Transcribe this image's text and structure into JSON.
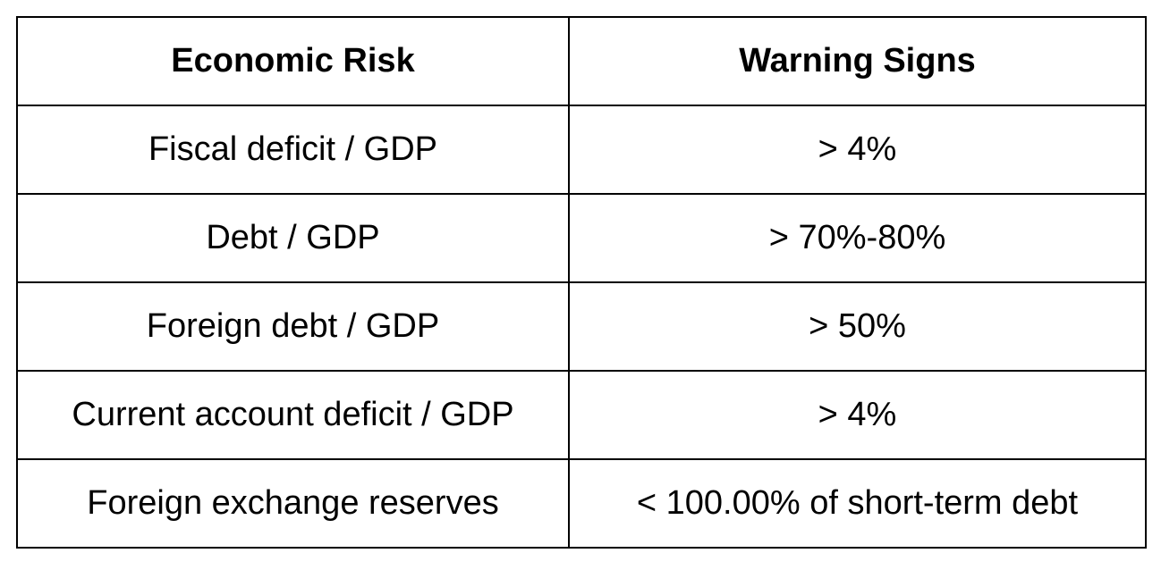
{
  "table": {
    "headers": {
      "risk": "Economic Risk",
      "signs": "Warning Signs"
    },
    "rows": [
      {
        "risk": "Fiscal deficit / GDP",
        "sign": "> 4%"
      },
      {
        "risk": "Debt / GDP",
        "sign": "> 70%-80%"
      },
      {
        "risk": "Foreign debt / GDP",
        "sign": "> 50%"
      },
      {
        "risk": "Current account deficit / GDP",
        "sign": "> 4%"
      },
      {
        "risk": "Foreign exchange reserves",
        "sign": "< 100.00% of short-term debt"
      }
    ]
  }
}
